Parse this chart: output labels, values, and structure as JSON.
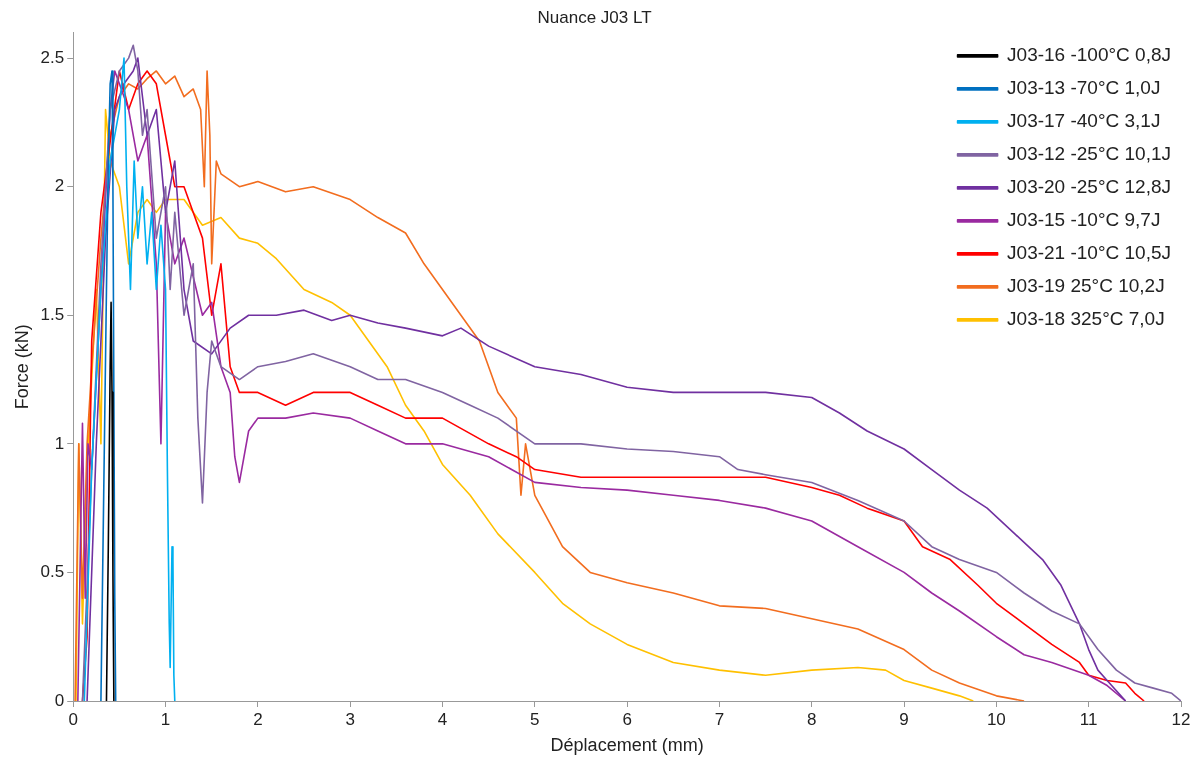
{
  "chart_data": {
    "type": "line",
    "title": "Nuance J03 LT",
    "xlabel": "Déplacement (mm)",
    "ylabel": "Force (kN)",
    "xlim": [
      0,
      12
    ],
    "xticks": [
      0,
      1,
      2,
      3,
      4,
      5,
      6,
      7,
      8,
      9,
      10,
      11,
      12
    ],
    "ylim": [
      0,
      2.6
    ],
    "yticks": [
      0,
      0.5,
      1,
      1.5,
      2,
      2.5
    ],
    "grid": false,
    "legend": "top right",
    "marker": "none",
    "line_style": "solid",
    "series": [
      {
        "name": "J03-16 -100°C 0,8J",
        "color": "#000000",
        "x": [
          0.36,
          0.38,
          0.4,
          0.41,
          0.42,
          0.43,
          0.44
        ],
        "values": [
          0,
          0.6,
          1.3,
          1.55,
          1.2,
          0.5,
          0
        ]
      },
      {
        "name": "J03-13 -70°C 1,0J",
        "color": "#0070c0",
        "x": [
          0.3,
          0.33,
          0.36,
          0.38,
          0.4,
          0.42,
          0.43,
          0.44,
          0.45,
          0.46
        ],
        "values": [
          0,
          0.8,
          1.6,
          2.1,
          2.4,
          2.45,
          2.0,
          1.2,
          0.4,
          0
        ]
      },
      {
        "name": "J03-17 -40°C 3,1J",
        "color": "#00b0f0",
        "x": [
          0.12,
          0.2,
          0.3,
          0.4,
          0.5,
          0.55,
          0.58,
          0.62,
          0.66,
          0.7,
          0.75,
          0.8,
          0.85,
          0.9,
          0.95,
          1.0,
          1.02,
          1.04,
          1.05,
          1.07,
          1.08,
          1.09,
          1.1
        ],
        "values": [
          0,
          0.9,
          1.6,
          2.1,
          2.3,
          2.5,
          2.0,
          1.6,
          2.1,
          1.8,
          2.0,
          1.7,
          1.9,
          1.6,
          1.85,
          1.6,
          0.9,
          0.3,
          0.13,
          0.6,
          0.55,
          0.1,
          0
        ]
      },
      {
        "name": "J03-12 -25°C 10,1J",
        "color": "#8064a2",
        "x": [
          0.1,
          0.2,
          0.3,
          0.4,
          0.5,
          0.6,
          0.65,
          0.7,
          0.75,
          0.8,
          0.9,
          1.0,
          1.05,
          1.1,
          1.2,
          1.3,
          1.35,
          1.4,
          1.45,
          1.5,
          1.6,
          1.8,
          2.0,
          2.3,
          2.6,
          3.0,
          3.3,
          3.6,
          4.0,
          4.3,
          4.6,
          5.0,
          5.5,
          6.0,
          6.5,
          7.0,
          7.2,
          7.5,
          8.0,
          8.5,
          9.0,
          9.3,
          9.6,
          10.0,
          10.3,
          10.6,
          10.9,
          11.1,
          11.3,
          11.5,
          11.7,
          11.9,
          12.0
        ],
        "values": [
          0,
          0.9,
          1.7,
          2.3,
          2.45,
          2.5,
          2.55,
          2.45,
          2.2,
          2.3,
          1.8,
          2.0,
          1.6,
          1.9,
          1.5,
          1.7,
          1.1,
          0.77,
          1.2,
          1.4,
          1.3,
          1.25,
          1.3,
          1.32,
          1.35,
          1.3,
          1.25,
          1.25,
          1.2,
          1.15,
          1.1,
          1.0,
          1.0,
          0.98,
          0.97,
          0.95,
          0.9,
          0.88,
          0.85,
          0.78,
          0.7,
          0.6,
          0.55,
          0.5,
          0.42,
          0.35,
          0.3,
          0.2,
          0.12,
          0.07,
          0.05,
          0.03,
          0
        ]
      },
      {
        "name": "J03-20 -25°C 12,8J",
        "color": "#7030a0",
        "x": [
          0.15,
          0.25,
          0.35,
          0.45,
          0.55,
          0.65,
          0.7,
          0.8,
          0.9,
          1.0,
          1.1,
          1.2,
          1.3,
          1.5,
          1.7,
          1.9,
          2.2,
          2.5,
          2.8,
          3.0,
          3.3,
          3.6,
          4.0,
          4.2,
          4.5,
          5.0,
          5.5,
          6.0,
          6.5,
          7.0,
          7.5,
          8.0,
          8.3,
          8.6,
          9.0,
          9.3,
          9.6,
          9.9,
          10.2,
          10.5,
          10.7,
          10.9,
          11.0,
          11.1,
          11.2,
          11.3,
          11.4
        ],
        "values": [
          0,
          1.0,
          1.8,
          2.3,
          2.4,
          2.45,
          2.5,
          2.2,
          2.3,
          1.9,
          2.1,
          1.6,
          1.4,
          1.35,
          1.45,
          1.5,
          1.5,
          1.52,
          1.48,
          1.5,
          1.47,
          1.45,
          1.42,
          1.45,
          1.38,
          1.3,
          1.27,
          1.22,
          1.2,
          1.2,
          1.2,
          1.18,
          1.12,
          1.05,
          0.98,
          0.9,
          0.82,
          0.75,
          0.65,
          0.55,
          0.45,
          0.3,
          0.2,
          0.12,
          0.08,
          0.04,
          0
        ]
      },
      {
        "name": "J03-15 -10°C 9,7J",
        "color": "#9a2aa0",
        "x": [
          0.05,
          0.1,
          0.13,
          0.16,
          0.2,
          0.3,
          0.4,
          0.45,
          0.5,
          0.6,
          0.7,
          0.8,
          0.9,
          0.95,
          1.0,
          1.1,
          1.2,
          1.3,
          1.4,
          1.5,
          1.6,
          1.7,
          1.75,
          1.8,
          1.9,
          2.0,
          2.3,
          2.6,
          3.0,
          3.3,
          3.6,
          4.0,
          4.5,
          5.0,
          5.5,
          6.0,
          6.5,
          7.0,
          7.5,
          8.0,
          8.5,
          9.0,
          9.3,
          9.6,
          10.0,
          10.3,
          10.6,
          11.0,
          11.2,
          11.4
        ],
        "values": [
          0,
          1.08,
          0.4,
          1.0,
          0.9,
          1.6,
          2.3,
          2.45,
          2.4,
          2.3,
          2.1,
          2.2,
          1.7,
          1.0,
          1.9,
          1.7,
          1.8,
          1.65,
          1.5,
          1.55,
          1.3,
          1.2,
          0.95,
          0.85,
          1.05,
          1.1,
          1.1,
          1.12,
          1.1,
          1.05,
          1.0,
          1.0,
          0.95,
          0.85,
          0.83,
          0.82,
          0.8,
          0.78,
          0.75,
          0.7,
          0.6,
          0.5,
          0.42,
          0.35,
          0.25,
          0.18,
          0.15,
          0.1,
          0.06,
          0
        ]
      },
      {
        "name": "J03-21 -10°C 10,5J",
        "color": "#ff0000",
        "x": [
          0.1,
          0.15,
          0.2,
          0.3,
          0.4,
          0.5,
          0.6,
          0.7,
          0.8,
          0.9,
          1.0,
          1.1,
          1.2,
          1.3,
          1.4,
          1.5,
          1.6,
          1.7,
          1.8,
          2.0,
          2.3,
          2.6,
          3.0,
          3.3,
          3.6,
          4.0,
          4.5,
          4.8,
          5.0,
          5.5,
          6.0,
          6.5,
          7.0,
          7.5,
          8.0,
          8.3,
          8.6,
          9.0,
          9.2,
          9.5,
          9.8,
          10.0,
          10.3,
          10.6,
          10.9,
          11.0,
          11.2,
          11.4,
          11.5,
          11.6
        ],
        "values": [
          0,
          0.25,
          1.4,
          1.9,
          null,
          2.45,
          2.3,
          2.4,
          2.45,
          2.4,
          2.2,
          2.0,
          2.0,
          1.9,
          1.8,
          1.5,
          1.7,
          1.3,
          1.2,
          1.2,
          1.15,
          1.2,
          1.2,
          1.15,
          1.1,
          1.1,
          1.0,
          0.95,
          0.9,
          0.87,
          0.87,
          0.87,
          0.87,
          0.87,
          0.83,
          0.8,
          0.75,
          0.7,
          0.6,
          0.55,
          0.45,
          0.38,
          0.3,
          0.22,
          0.15,
          0.1,
          0.08,
          0.07,
          0.03,
          0
        ]
      },
      {
        "name": "J03-19 25°C 10,2J",
        "color": "#f26d1f",
        "x": [
          0.02,
          0.06,
          0.1,
          0.15,
          0.2,
          0.3,
          0.4,
          0.5,
          0.6,
          0.7,
          0.8,
          0.9,
          1.0,
          1.1,
          1.2,
          1.3,
          1.38,
          1.42,
          1.45,
          1.48,
          1.5,
          1.55,
          1.6,
          1.8,
          2.0,
          2.3,
          2.6,
          3.0,
          3.3,
          3.6,
          3.8,
          4.0,
          4.2,
          4.4,
          4.6,
          4.8,
          4.85,
          4.9,
          5.0,
          5.3,
          5.6,
          6.0,
          6.5,
          7.0,
          7.5,
          8.0,
          8.5,
          9.0,
          9.3,
          9.6,
          10.0,
          10.3
        ],
        "values": [
          0,
          1.0,
          0.4,
          1.0,
          1.3,
          1.8,
          2.2,
          2.35,
          2.4,
          2.38,
          2.42,
          2.45,
          2.4,
          2.43,
          2.35,
          2.38,
          2.3,
          2.0,
          2.45,
          2.2,
          1.7,
          2.1,
          2.05,
          2.0,
          2.02,
          1.98,
          2.0,
          1.95,
          1.88,
          1.82,
          1.7,
          1.6,
          1.5,
          1.4,
          1.2,
          1.1,
          0.8,
          1.0,
          0.8,
          0.6,
          0.5,
          0.46,
          0.42,
          0.37,
          0.36,
          0.32,
          0.28,
          0.2,
          0.12,
          0.07,
          0.02,
          0
        ]
      },
      {
        "name": "J03-18 325°C 7,0J",
        "color": "#ffc000",
        "x": [
          0.03,
          0.06,
          0.1,
          0.15,
          0.2,
          0.25,
          0.3,
          0.35,
          0.4,
          0.5,
          0.6,
          0.7,
          0.8,
          0.9,
          1.0,
          1.2,
          1.4,
          1.6,
          1.8,
          2.0,
          2.2,
          2.5,
          2.8,
          3.0,
          3.2,
          3.4,
          3.6,
          3.8,
          4.0,
          4.3,
          4.6,
          5.0,
          5.3,
          5.6,
          6.0,
          6.5,
          7.0,
          7.5,
          8.0,
          8.5,
          8.8,
          9.0,
          9.3,
          9.6,
          9.75
        ],
        "values": [
          0,
          1.0,
          0.3,
          0.9,
          null,
          1.6,
          1.0,
          2.3,
          2.1,
          2.0,
          1.7,
          1.9,
          1.95,
          1.9,
          1.95,
          1.95,
          1.85,
          1.88,
          1.8,
          1.78,
          1.72,
          1.6,
          1.55,
          1.5,
          1.4,
          1.3,
          1.15,
          1.05,
          0.92,
          0.8,
          0.65,
          0.5,
          0.38,
          0.3,
          0.22,
          0.15,
          0.12,
          0.1,
          0.12,
          0.13,
          0.12,
          0.08,
          0.05,
          0.02,
          0
        ]
      }
    ]
  }
}
